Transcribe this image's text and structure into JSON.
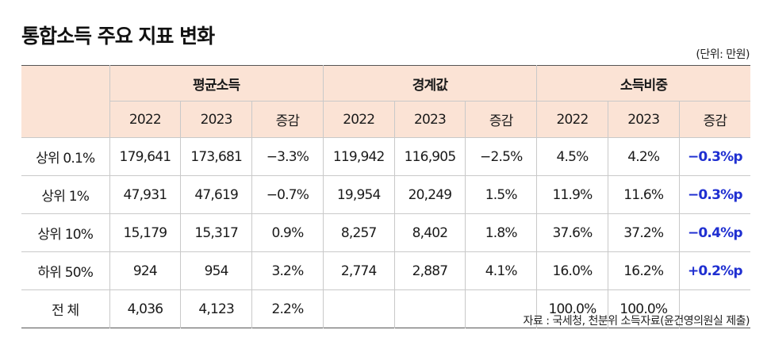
{
  "title": "통합소득 주요 지표 변화",
  "unit": "(단위: 만원)",
  "groups": [
    "평균소득",
    "경계값",
    "소득비중"
  ],
  "subheaders": [
    "2022",
    "2023",
    "증감"
  ],
  "rows": [
    {
      "label": "상위 0.1%",
      "cells": [
        "179,641",
        "173,681",
        "−3.3%",
        "119,942",
        "116,905",
        "−2.5%",
        "4.5%",
        "4.2%",
        "−0.3%p"
      ]
    },
    {
      "label": "상위 1%",
      "cells": [
        "47,931",
        "47,619",
        "−0.7%",
        "19,954",
        "20,249",
        "1.5%",
        "11.9%",
        "11.6%",
        "−0.3%p"
      ]
    },
    {
      "label": "상위 10%",
      "cells": [
        "15,179",
        "15,317",
        "0.9%",
        "8,257",
        "8,402",
        "1.8%",
        "37.6%",
        "37.2%",
        "−0.4%p"
      ]
    },
    {
      "label": "하위 50%",
      "cells": [
        "924",
        "954",
        "3.2%",
        "2,774",
        "2,887",
        "4.1%",
        "16.0%",
        "16.2%",
        "+0.2%p"
      ]
    },
    {
      "label": "전 체",
      "cells": [
        "4,036",
        "4,123",
        "2.2%",
        "",
        "",
        "",
        "100.0%",
        "100.0%",
        ""
      ]
    }
  ],
  "source": "자료 : 국세청, 천분위 소득자료(윤건영의원실 제출)",
  "colors": {
    "header_bg": "#fbe3d5",
    "change_blue": "#1f2fd1"
  }
}
